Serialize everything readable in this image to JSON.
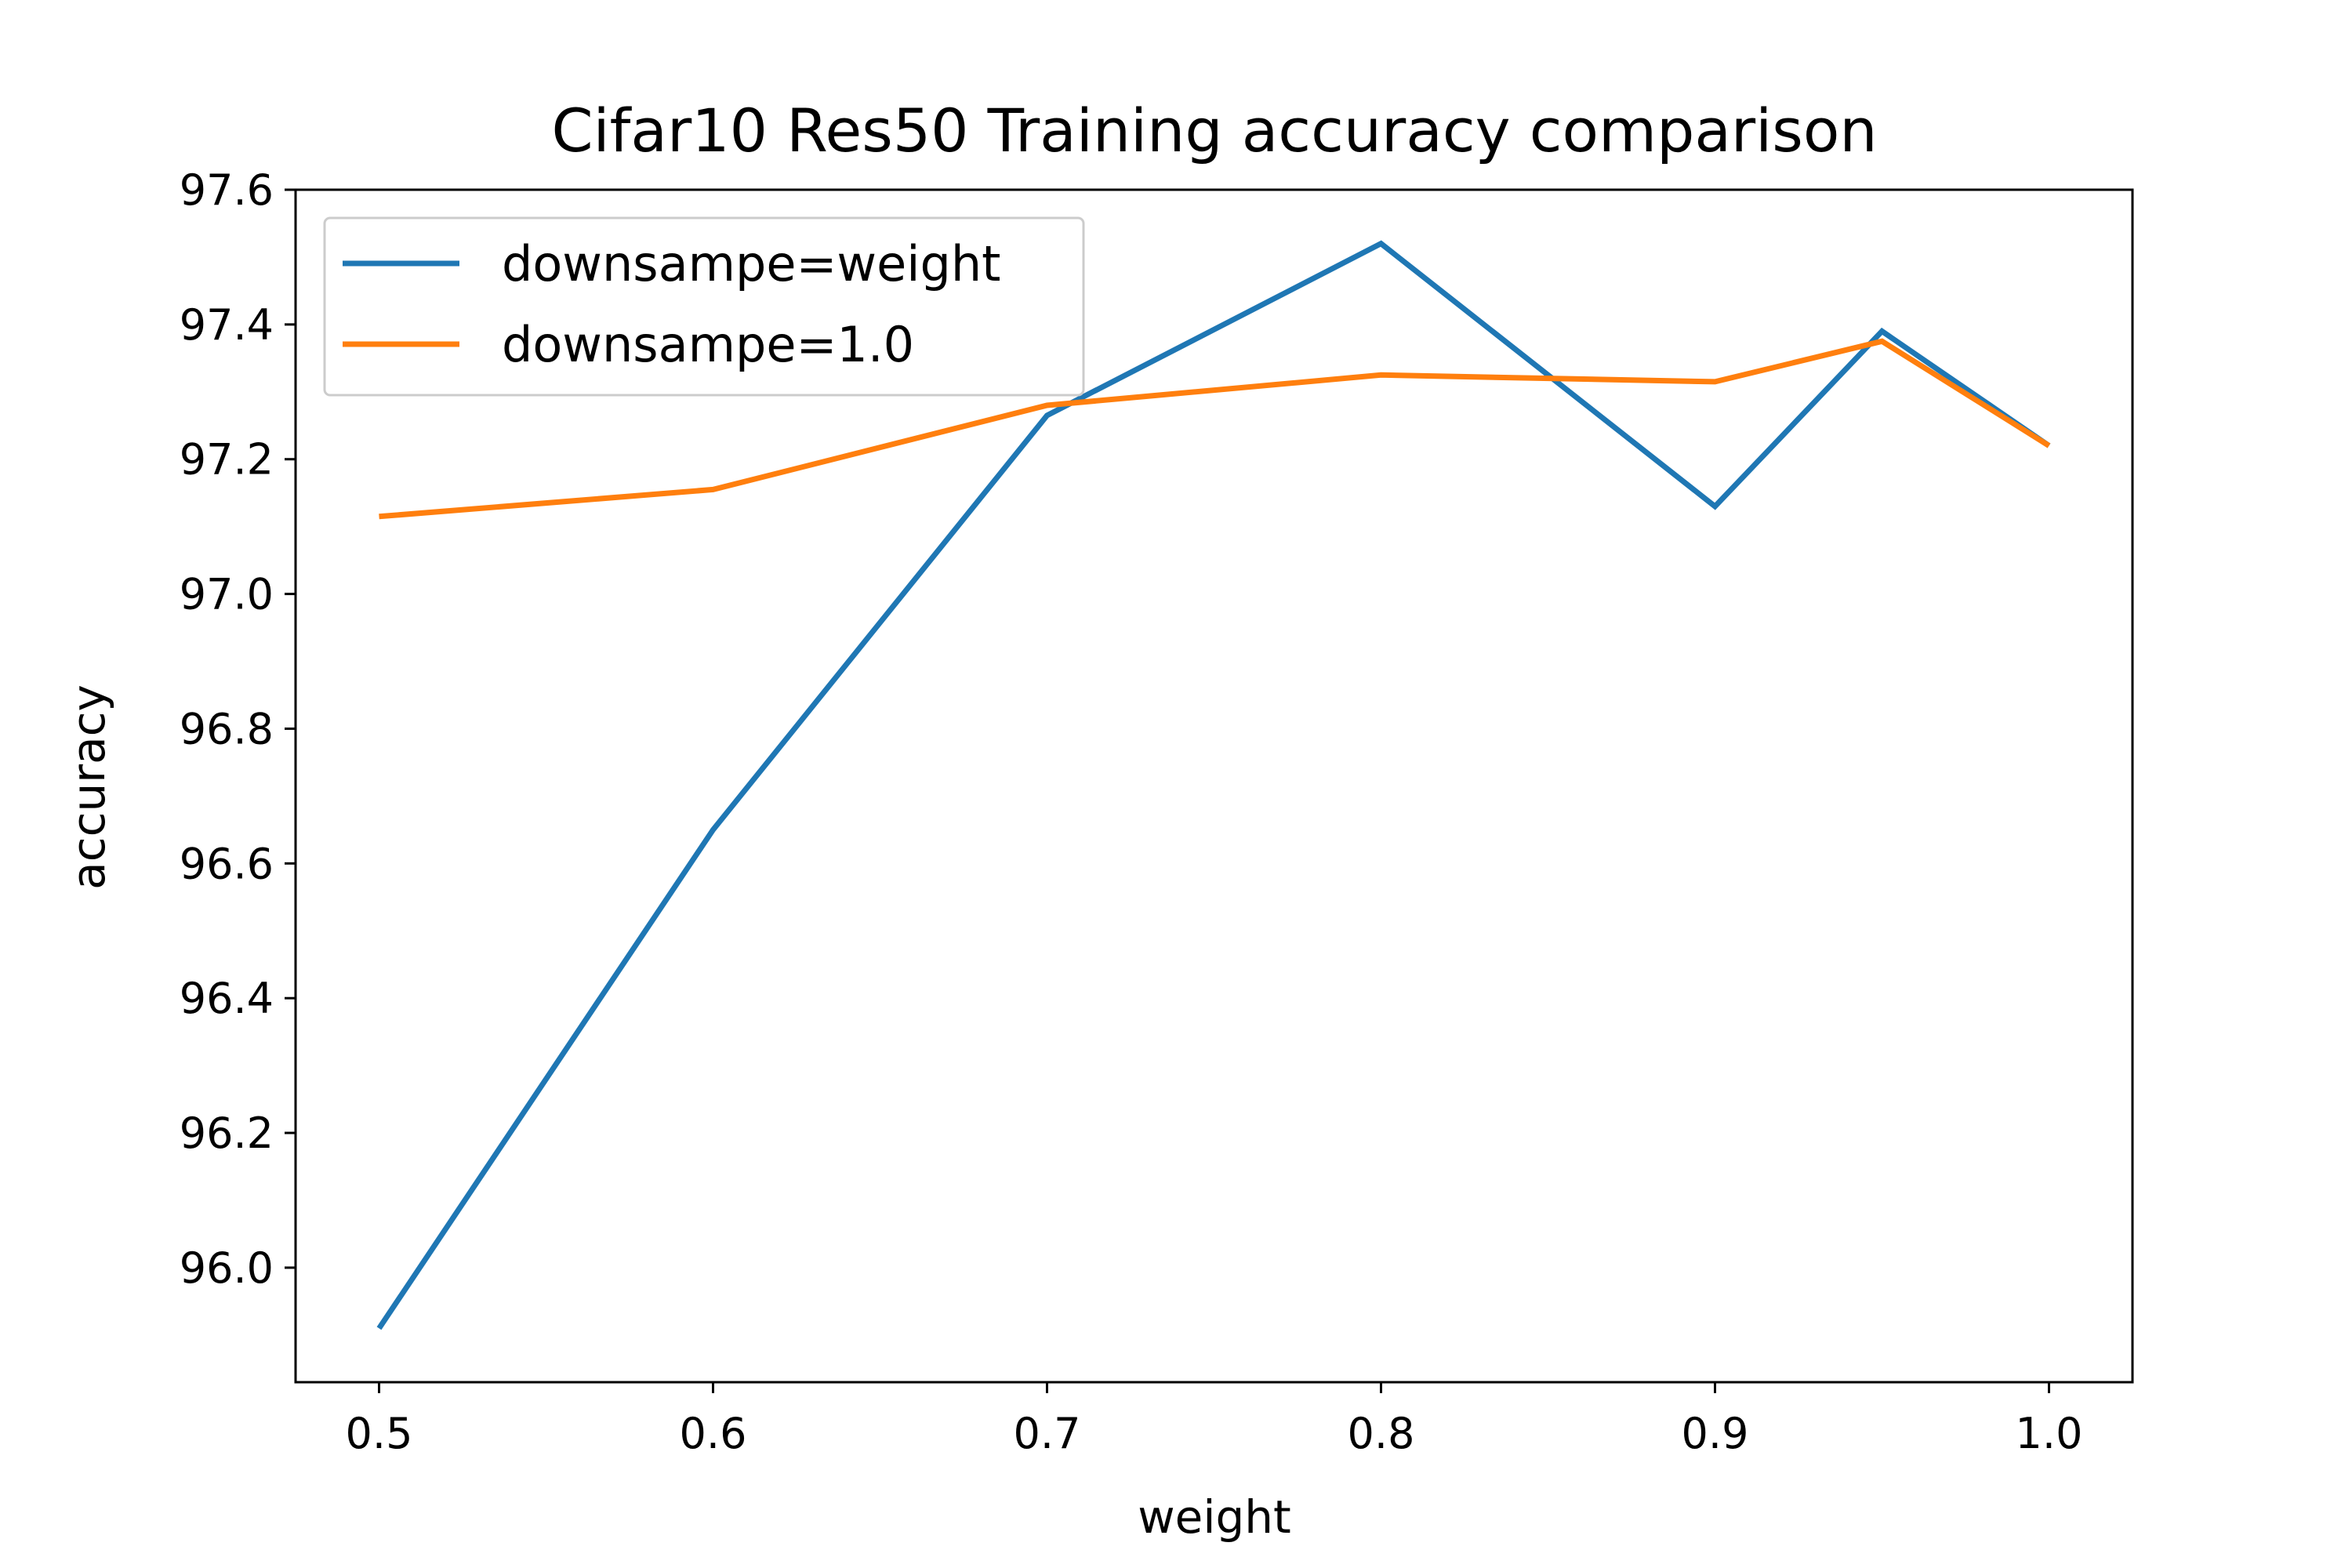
{
  "chart_data": {
    "type": "line",
    "title": "Cifar10 Res50 Training accuracy comparison",
    "xlabel": "weight",
    "ylabel": "accuracy",
    "xlim": [
      0.475,
      1.025
    ],
    "ylim": [
      95.83,
      97.6
    ],
    "x": [
      0.5,
      0.6,
      0.7,
      0.8,
      0.9,
      0.95,
      1.0
    ],
    "xticks": [
      0.5,
      0.6,
      0.7,
      0.8,
      0.9,
      1.0
    ],
    "xtick_labels": [
      "0.5",
      "0.6",
      "0.7",
      "0.8",
      "0.9",
      "1.0"
    ],
    "yticks": [
      96.0,
      96.2,
      96.4,
      96.6,
      96.8,
      97.0,
      97.2,
      97.4,
      97.6
    ],
    "ytick_labels": [
      "96.0",
      "96.2",
      "96.4",
      "96.6",
      "96.8",
      "97.0",
      "97.2",
      "97.4",
      "97.6"
    ],
    "grid": false,
    "legend_position": "top-left",
    "series": [
      {
        "name": "downsampe=weight",
        "color": "#1f77b4",
        "values": [
          95.91,
          96.65,
          97.265,
          97.52,
          97.13,
          97.39,
          97.22
        ]
      },
      {
        "name": "downsampe=1.0",
        "color": "#ff7f0e",
        "values": [
          97.115,
          97.155,
          97.28,
          97.325,
          97.315,
          97.375,
          97.22
        ]
      }
    ]
  }
}
